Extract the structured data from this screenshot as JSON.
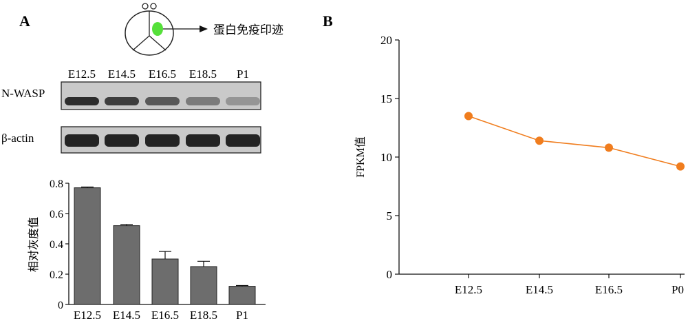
{
  "panel_a": {
    "label": "A",
    "schematic_label": "蛋白免疫印迹",
    "blot": {
      "lanes": [
        "E12.5",
        "E14.5",
        "E16.5",
        "E18.5",
        "P1"
      ],
      "rows": [
        "N-WASP",
        "β-actin"
      ],
      "intensity": {
        "N-WASP": [
          0.95,
          0.85,
          0.7,
          0.5,
          0.35
        ],
        "β-actin": [
          1,
          1,
          1,
          1,
          1
        ]
      }
    }
  },
  "panel_b": {
    "label": "B"
  },
  "chart_data": [
    {
      "type": "bar",
      "categories": [
        "E12.5",
        "E14.5",
        "E16.5",
        "E18.5",
        "P1"
      ],
      "values": [
        0.77,
        0.52,
        0.3,
        0.25,
        0.12
      ],
      "errors": [
        0.005,
        0.008,
        0.05,
        0.035,
        0.005
      ],
      "ylabel": "相对灰度值",
      "ylim": [
        0,
        0.8
      ],
      "yticks": [
        "0",
        "0.2",
        "0.4",
        "0.6",
        "0.8"
      ],
      "bar_color": "#6d6d6d"
    },
    {
      "type": "line",
      "categories": [
        "E12.5",
        "E14.5",
        "E16.5",
        "P0"
      ],
      "values": [
        13.5,
        11.4,
        10.8,
        9.2
      ],
      "ylabel": "FPKM值",
      "ylim": [
        0,
        20
      ],
      "yticks": [
        "0",
        "5",
        "10",
        "15",
        "20"
      ],
      "color": "#f07d1e"
    }
  ]
}
